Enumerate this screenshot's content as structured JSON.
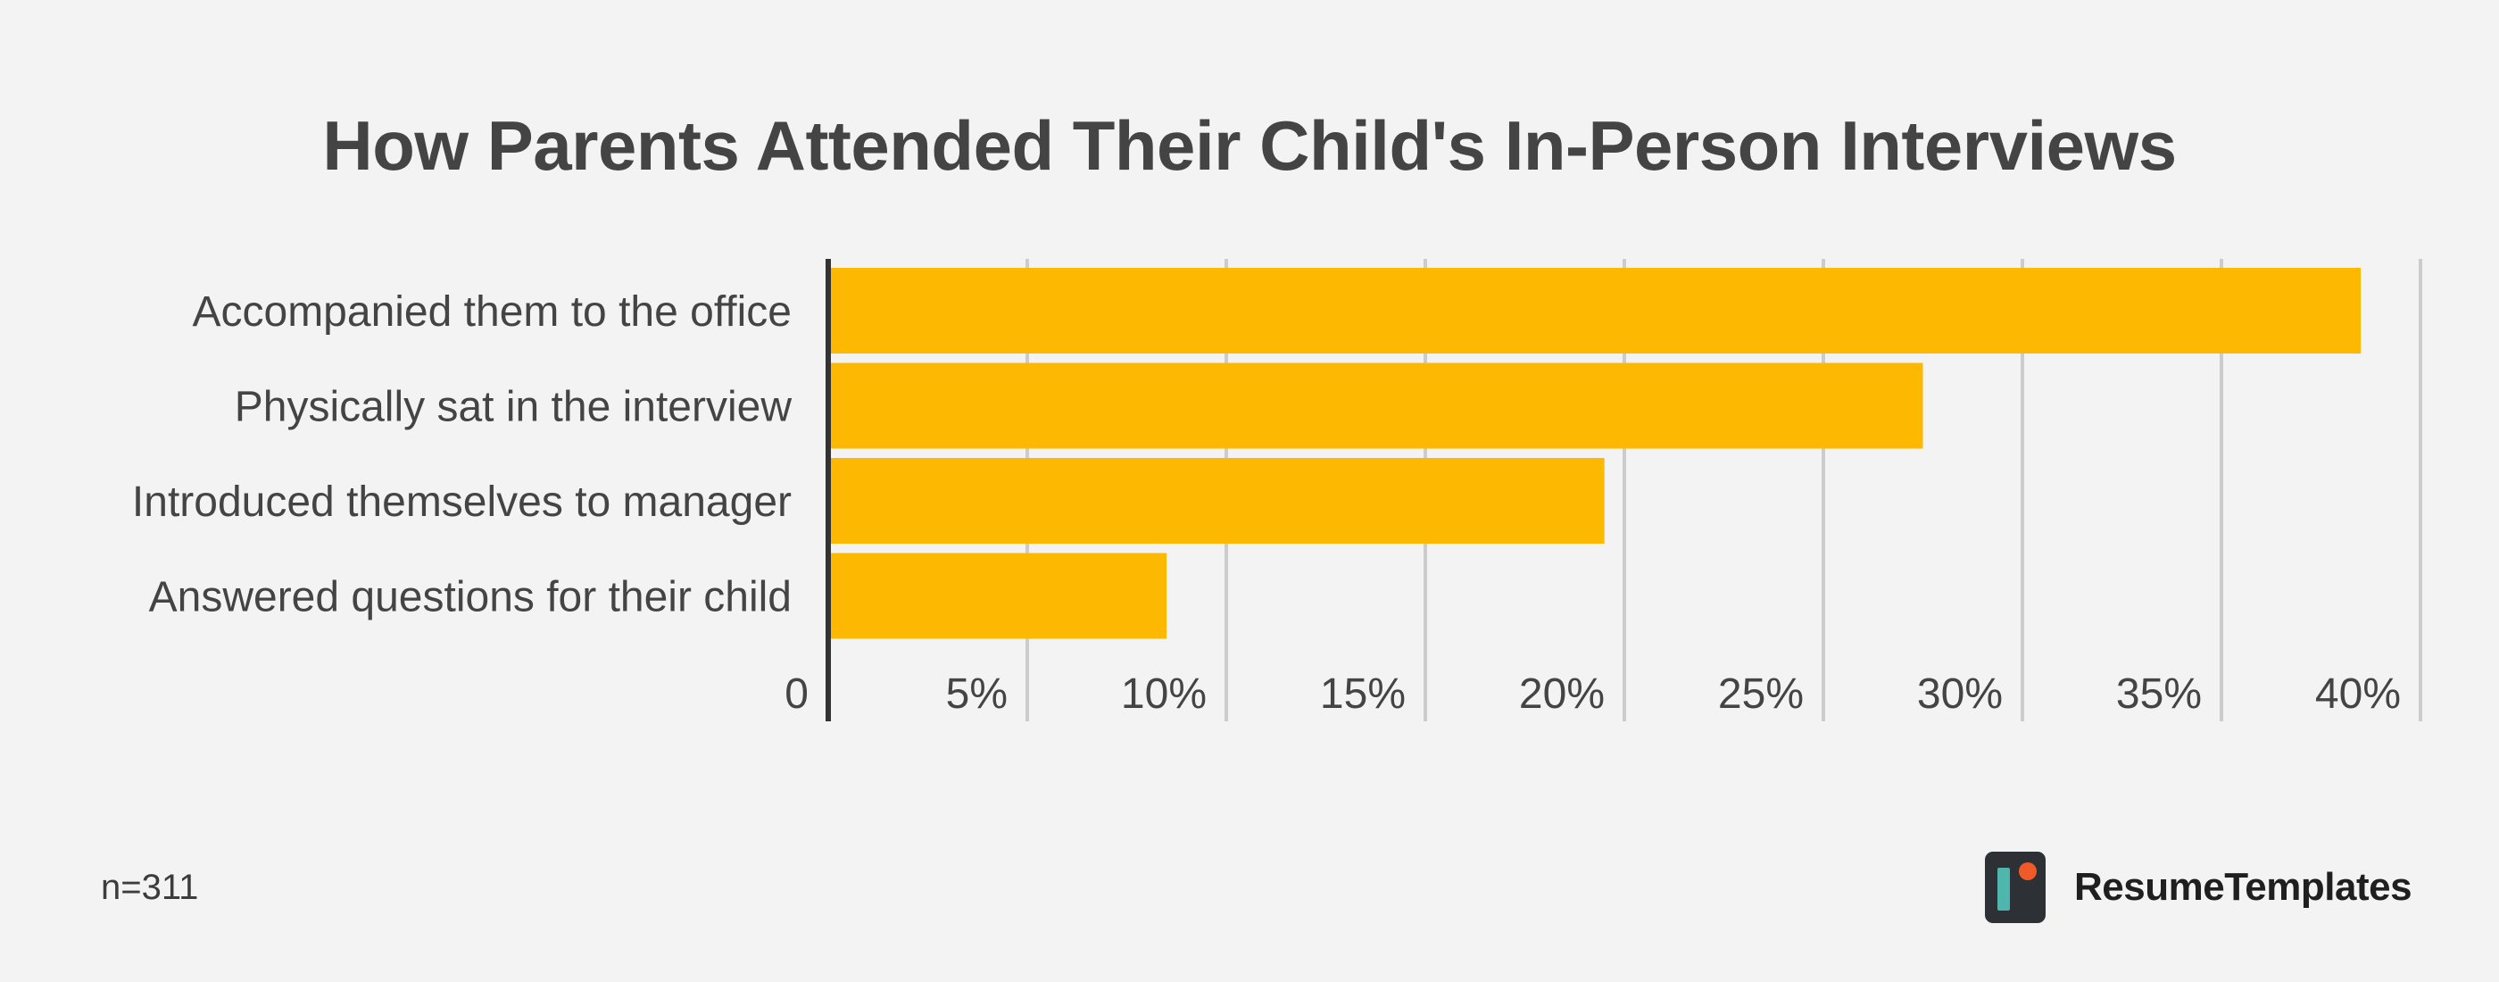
{
  "chart_data": {
    "type": "bar",
    "orientation": "horizontal",
    "title": "How Parents Attended Their Child's In-Person Interviews",
    "categories": [
      "Accompanied them to the office",
      "Physically sat in the interview",
      "Introduced themselves to manager",
      "Answered questions for their child"
    ],
    "values": [
      38.5,
      27.5,
      19.5,
      8.5
    ],
    "xlim": [
      0,
      40
    ],
    "xticks": [
      0,
      5,
      10,
      15,
      20,
      25,
      30,
      35,
      40
    ],
    "xtick_labels": [
      "0",
      "5%",
      "10%",
      "15%",
      "20%",
      "25%",
      "30%",
      "35%",
      "40%"
    ],
    "xlabel": "",
    "ylabel": "",
    "grid": true,
    "bar_color": "#fdb901"
  },
  "footer": {
    "sample_size": "n=311",
    "brand_name": "ResumeTemplates",
    "brand_icon": "resumetemplates-logo-icon"
  },
  "colors": {
    "background": "#f3f3f3",
    "title": "#444444",
    "label": "#444444",
    "grid": "#cccccc",
    "axis": "#333333",
    "logo_dark": "#2d3136",
    "logo_teal": "#4fb6ad",
    "logo_accent": "#f05a28"
  }
}
